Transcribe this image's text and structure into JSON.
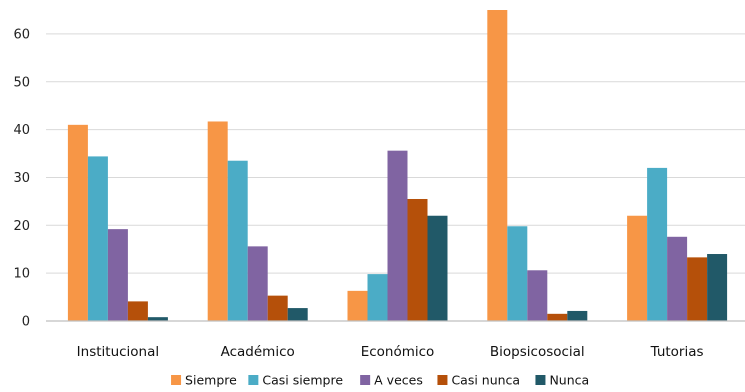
{
  "chart_data": {
    "type": "bar",
    "categories": [
      "Institucional",
      "Académico",
      "Económico",
      "Biopsicosocial",
      "Tutorias"
    ],
    "series": [
      {
        "name": "Siempre",
        "color": "#F79646",
        "values": [
          41,
          41.7,
          6.3,
          65,
          22
        ]
      },
      {
        "name": "Casi siempre",
        "color": "#4BACC6",
        "values": [
          34.4,
          33.5,
          9.8,
          19.8,
          32
        ]
      },
      {
        "name": "A veces",
        "color": "#8064A2",
        "values": [
          19.2,
          15.6,
          35.6,
          10.6,
          17.6
        ]
      },
      {
        "name": "Casi nunca",
        "color": "#B5500A",
        "values": [
          4.1,
          5.3,
          25.5,
          1.5,
          13.3
        ]
      },
      {
        "name": "Nunca",
        "color": "#215968",
        "values": [
          0.8,
          2.7,
          22,
          2.1,
          14
        ]
      }
    ],
    "yticks": [
      0,
      10,
      20,
      30,
      40,
      50,
      60
    ],
    "ylim": [
      0,
      65
    ],
    "grid": true,
    "legend_position": "bottom"
  }
}
